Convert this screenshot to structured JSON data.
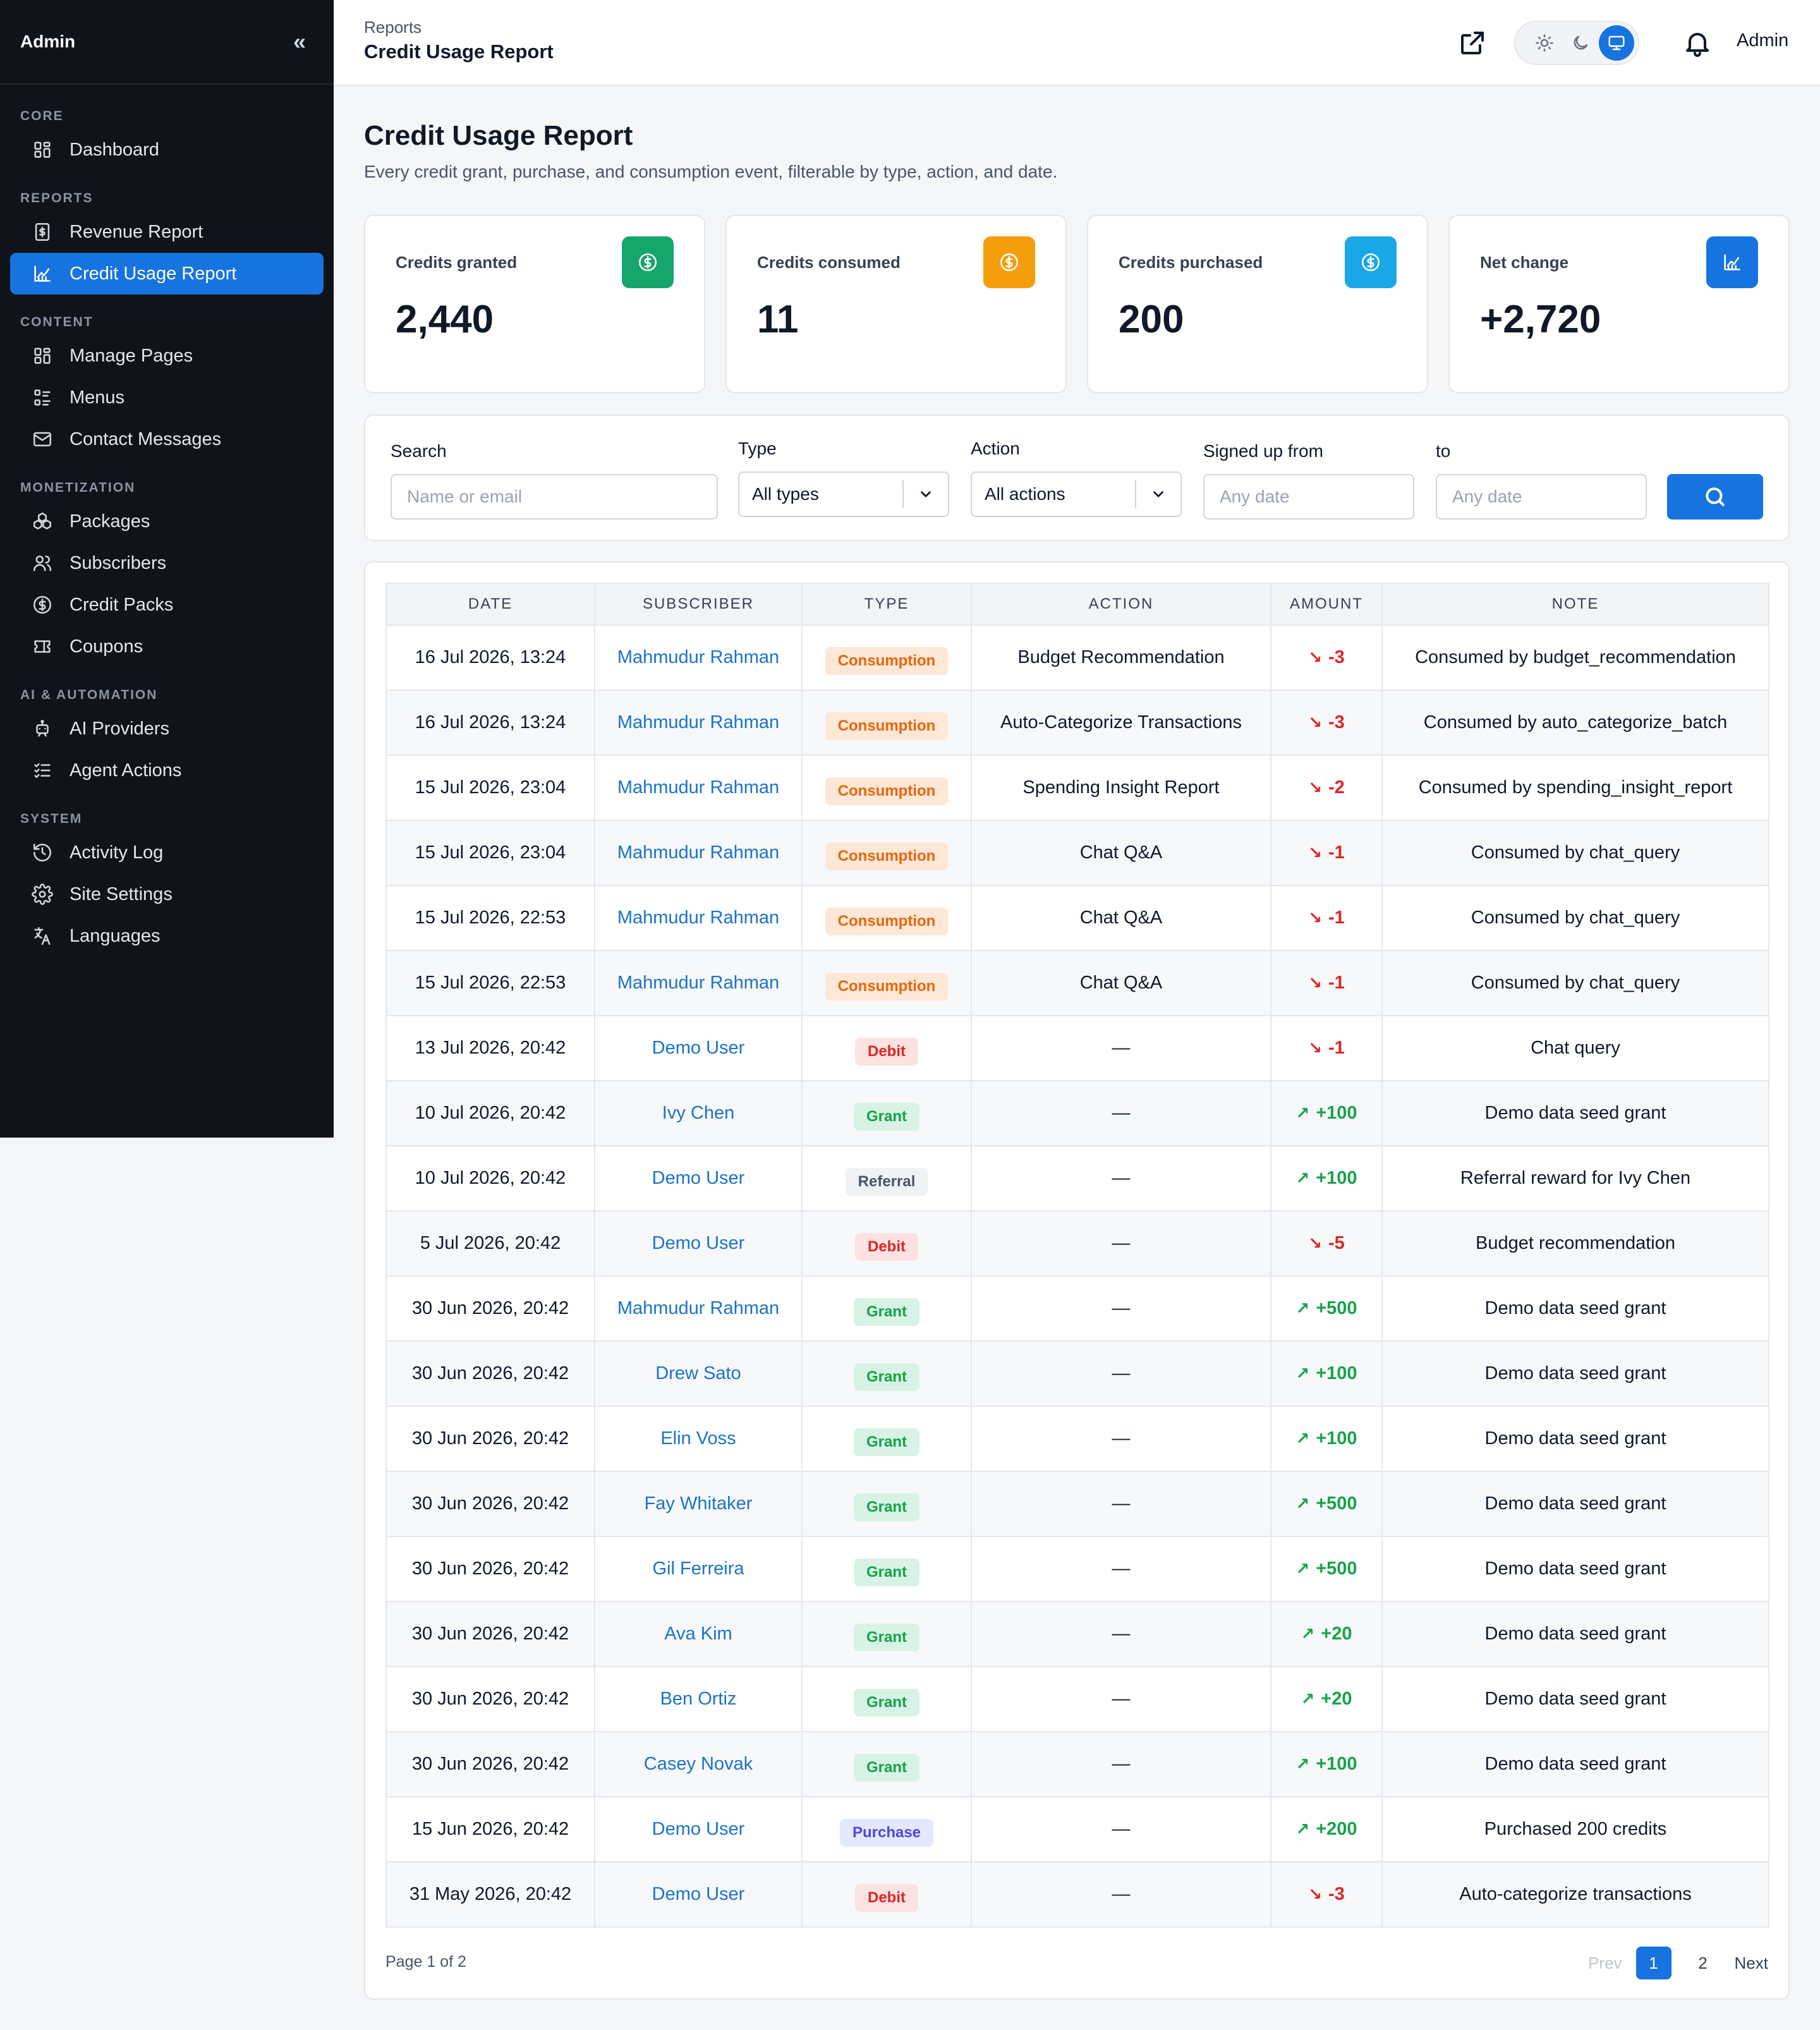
{
  "sidebar": {
    "brand": "Admin",
    "collapse_icon": "«",
    "sections": [
      {
        "title": "CORE",
        "items": [
          {
            "label": "Dashboard",
            "icon": "grid-icon"
          }
        ]
      },
      {
        "title": "REPORTS",
        "items": [
          {
            "label": "Revenue Report",
            "icon": "receipt-icon"
          },
          {
            "label": "Credit Usage Report",
            "icon": "chart-icon",
            "active": true
          }
        ]
      },
      {
        "title": "CONTENT",
        "items": [
          {
            "label": "Manage Pages",
            "icon": "grid-icon"
          },
          {
            "label": "Menus",
            "icon": "list-icon"
          },
          {
            "label": "Contact Messages",
            "icon": "mail-icon"
          }
        ]
      },
      {
        "title": "MONETIZATION",
        "items": [
          {
            "label": "Packages",
            "icon": "cubes-icon"
          },
          {
            "label": "Subscribers",
            "icon": "users-icon"
          },
          {
            "label": "Credit Packs",
            "icon": "dollar-icon"
          },
          {
            "label": "Coupons",
            "icon": "ticket-icon"
          }
        ]
      },
      {
        "title": "AI & AUTOMATION",
        "items": [
          {
            "label": "AI Providers",
            "icon": "robot-icon"
          },
          {
            "label": "Agent Actions",
            "icon": "checklist-icon"
          }
        ]
      },
      {
        "title": "SYSTEM",
        "items": [
          {
            "label": "Activity Log",
            "icon": "history-icon"
          },
          {
            "label": "Site Settings",
            "icon": "gear-icon"
          },
          {
            "label": "Languages",
            "icon": "translate-icon"
          }
        ]
      }
    ]
  },
  "header": {
    "breadcrumb_parent": "Reports",
    "breadcrumb_current": "Credit Usage Report",
    "user": "Admin"
  },
  "page": {
    "title": "Credit Usage Report",
    "subtitle": "Every credit grant, purchase, and consumption event, filterable by type, action, and date."
  },
  "stats": [
    {
      "label": "Credits granted",
      "value": "2,440",
      "color": "#16a56b",
      "icon": "dollar-icon"
    },
    {
      "label": "Credits consumed",
      "value": "11",
      "color": "#f59e0b",
      "icon": "dollar-icon"
    },
    {
      "label": "Credits purchased",
      "value": "200",
      "color": "#1aa7e8",
      "icon": "dollar-icon"
    },
    {
      "label": "Net change",
      "value": "+2,720",
      "color": "#1773e0",
      "icon": "chart-icon"
    }
  ],
  "filters": {
    "search_label": "Search",
    "search_placeholder": "Name or email",
    "type_label": "Type",
    "type_value": "All types",
    "action_label": "Action",
    "action_value": "All actions",
    "from_label": "Signed up from",
    "from_placeholder": "Any date",
    "to_label": "to",
    "to_placeholder": "Any date"
  },
  "table": {
    "columns": [
      "DATE",
      "SUBSCRIBER",
      "TYPE",
      "ACTION",
      "AMOUNT",
      "NOTE"
    ],
    "rows": [
      {
        "date": "16 Jul 2026, 13:24",
        "subscriber": "Mahmudur Rahman",
        "type": "Consumption",
        "action": "Budget Recommendation",
        "amount": "-3",
        "note": "Consumed by budget_recommendation"
      },
      {
        "date": "16 Jul 2026, 13:24",
        "subscriber": "Mahmudur Rahman",
        "type": "Consumption",
        "action": "Auto-Categorize Transactions",
        "amount": "-3",
        "note": "Consumed by auto_categorize_batch"
      },
      {
        "date": "15 Jul 2026, 23:04",
        "subscriber": "Mahmudur Rahman",
        "type": "Consumption",
        "action": "Spending Insight Report",
        "amount": "-2",
        "note": "Consumed by spending_insight_report"
      },
      {
        "date": "15 Jul 2026, 23:04",
        "subscriber": "Mahmudur Rahman",
        "type": "Consumption",
        "action": "Chat Q&A",
        "amount": "-1",
        "note": "Consumed by chat_query"
      },
      {
        "date": "15 Jul 2026, 22:53",
        "subscriber": "Mahmudur Rahman",
        "type": "Consumption",
        "action": "Chat Q&A",
        "amount": "-1",
        "note": "Consumed by chat_query"
      },
      {
        "date": "15 Jul 2026, 22:53",
        "subscriber": "Mahmudur Rahman",
        "type": "Consumption",
        "action": "Chat Q&A",
        "amount": "-1",
        "note": "Consumed by chat_query"
      },
      {
        "date": "13 Jul 2026, 20:42",
        "subscriber": "Demo User",
        "type": "Debit",
        "action": "—",
        "amount": "-1",
        "note": "Chat query"
      },
      {
        "date": "10 Jul 2026, 20:42",
        "subscriber": "Ivy Chen",
        "type": "Grant",
        "action": "—",
        "amount": "+100",
        "note": "Demo data seed grant"
      },
      {
        "date": "10 Jul 2026, 20:42",
        "subscriber": "Demo User",
        "type": "Referral",
        "action": "—",
        "amount": "+100",
        "note": "Referral reward for Ivy Chen"
      },
      {
        "date": "5 Jul 2026, 20:42",
        "subscriber": "Demo User",
        "type": "Debit",
        "action": "—",
        "amount": "-5",
        "note": "Budget recommendation"
      },
      {
        "date": "30 Jun 2026, 20:42",
        "subscriber": "Mahmudur Rahman",
        "type": "Grant",
        "action": "—",
        "amount": "+500",
        "note": "Demo data seed grant"
      },
      {
        "date": "30 Jun 2026, 20:42",
        "subscriber": "Drew Sato",
        "type": "Grant",
        "action": "—",
        "amount": "+100",
        "note": "Demo data seed grant"
      },
      {
        "date": "30 Jun 2026, 20:42",
        "subscriber": "Elin Voss",
        "type": "Grant",
        "action": "—",
        "amount": "+100",
        "note": "Demo data seed grant"
      },
      {
        "date": "30 Jun 2026, 20:42",
        "subscriber": "Fay Whitaker",
        "type": "Grant",
        "action": "—",
        "amount": "+500",
        "note": "Demo data seed grant"
      },
      {
        "date": "30 Jun 2026, 20:42",
        "subscriber": "Gil Ferreira",
        "type": "Grant",
        "action": "—",
        "amount": "+500",
        "note": "Demo data seed grant"
      },
      {
        "date": "30 Jun 2026, 20:42",
        "subscriber": "Ava Kim",
        "type": "Grant",
        "action": "—",
        "amount": "+20",
        "note": "Demo data seed grant"
      },
      {
        "date": "30 Jun 2026, 20:42",
        "subscriber": "Ben Ortiz",
        "type": "Grant",
        "action": "—",
        "amount": "+20",
        "note": "Demo data seed grant"
      },
      {
        "date": "30 Jun 2026, 20:42",
        "subscriber": "Casey Novak",
        "type": "Grant",
        "action": "—",
        "amount": "+100",
        "note": "Demo data seed grant"
      },
      {
        "date": "15 Jun 2026, 20:42",
        "subscriber": "Demo User",
        "type": "Purchase",
        "action": "—",
        "amount": "+200",
        "note": "Purchased 200 credits"
      },
      {
        "date": "31 May 2026, 20:42",
        "subscriber": "Demo User",
        "type": "Debit",
        "action": "—",
        "amount": "-3",
        "note": "Auto-categorize transactions"
      }
    ]
  },
  "pagination": {
    "info": "Page 1 of 2",
    "prev": "Prev",
    "pages": [
      "1",
      "2"
    ],
    "current": "1",
    "next": "Next"
  }
}
